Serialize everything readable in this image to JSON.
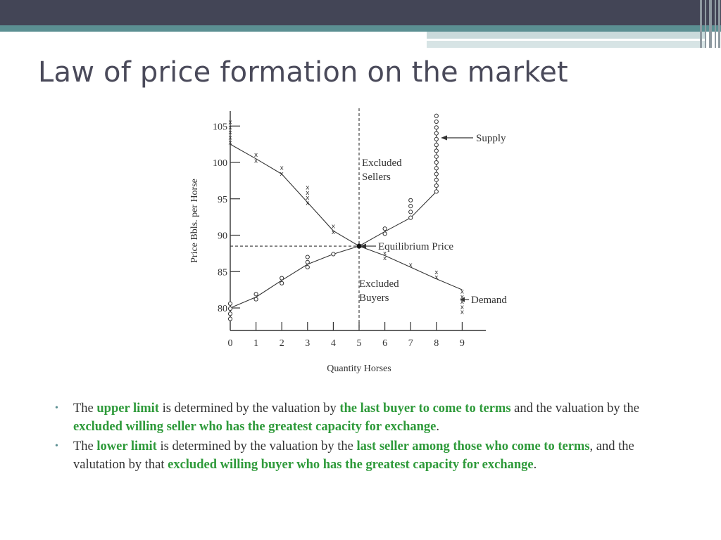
{
  "slide": {
    "title": "Law of price formation on the market"
  },
  "chart_data": {
    "type": "line",
    "xlabel": "Quantity Horses",
    "ylabel": "Price Bbls. per Horse",
    "xlim": [
      0,
      9
    ],
    "ylim": [
      79,
      106
    ],
    "x_ticks": [
      0,
      1,
      2,
      3,
      4,
      5,
      6,
      7,
      8,
      9
    ],
    "y_ticks": [
      80,
      85,
      90,
      95,
      100,
      105
    ],
    "series": [
      {
        "name": "Supply",
        "marker": "o",
        "points": [
          [
            0,
            80
          ],
          [
            1,
            81.5
          ],
          [
            2,
            83.8
          ],
          [
            3,
            86
          ],
          [
            4,
            87.4
          ],
          [
            5,
            88.5
          ],
          [
            6,
            90.5
          ],
          [
            7,
            92.4
          ],
          [
            8,
            96
          ],
          [
            8,
            105
          ]
        ],
        "marker_points": [
          [
            0,
            78.5
          ],
          [
            0,
            79.2
          ],
          [
            0,
            79.9
          ],
          [
            0,
            80.6
          ],
          [
            1,
            81.2
          ],
          [
            1,
            81.9
          ],
          [
            2,
            83.4
          ],
          [
            2,
            84.1
          ],
          [
            3,
            85.6
          ],
          [
            3,
            86.3
          ],
          [
            3,
            87
          ],
          [
            4,
            87.4
          ],
          [
            6,
            90.2
          ],
          [
            6,
            90.9
          ],
          [
            7,
            92.4
          ],
          [
            7,
            93.2
          ],
          [
            7,
            94
          ],
          [
            7,
            94.8
          ],
          [
            8,
            96
          ],
          [
            8,
            96.8
          ],
          [
            8,
            97.6
          ],
          [
            8,
            98.4
          ],
          [
            8,
            99.2
          ],
          [
            8,
            100
          ],
          [
            8,
            100.8
          ],
          [
            8,
            101.6
          ],
          [
            8,
            102.4
          ],
          [
            8,
            103.2
          ],
          [
            8,
            104
          ],
          [
            8,
            104.8
          ],
          [
            8,
            105.6
          ],
          [
            8,
            106.4
          ]
        ]
      },
      {
        "name": "Demand",
        "marker": "x",
        "points": [
          [
            0,
            102.5
          ],
          [
            1,
            100.5
          ],
          [
            2,
            98.4
          ],
          [
            3,
            94.5
          ],
          [
            4,
            90.6
          ],
          [
            5,
            88.5
          ],
          [
            6,
            87.2
          ],
          [
            7,
            85.6
          ],
          [
            8,
            84
          ],
          [
            9,
            82.5
          ]
        ],
        "marker_points": [
          [
            0,
            102.8
          ],
          [
            0,
            103.5
          ],
          [
            0,
            104.2
          ],
          [
            0,
            104.9
          ],
          [
            0,
            105.6
          ],
          [
            1,
            100.3
          ],
          [
            1,
            101.1
          ],
          [
            2,
            98.5
          ],
          [
            2,
            99.3
          ],
          [
            3,
            94.5
          ],
          [
            3,
            95.2
          ],
          [
            3,
            95.9
          ],
          [
            3,
            96.6
          ],
          [
            4,
            90.5
          ],
          [
            4,
            91.3
          ],
          [
            6,
            86.9
          ],
          [
            6,
            87.6
          ],
          [
            7,
            86
          ],
          [
            8,
            84.3
          ],
          [
            8,
            85
          ],
          [
            9,
            79.5
          ],
          [
            9,
            80.2
          ],
          [
            9,
            80.9
          ],
          [
            9,
            81.6
          ],
          [
            9,
            82.3
          ]
        ]
      }
    ],
    "equilibrium": {
      "x": 5,
      "y": 88.5
    },
    "annotations": [
      {
        "text": "Supply",
        "arrow": true
      },
      {
        "text": "Excluded Sellers",
        "lines": [
          "Excluded",
          "Sellers"
        ]
      },
      {
        "text": "Equilibrium Price",
        "arrow": true
      },
      {
        "text": "Excluded Buyers",
        "lines": [
          "Excluded",
          "Buyers"
        ]
      },
      {
        "text": "Demand",
        "arrow": true
      }
    ]
  },
  "bullets": [
    {
      "parts": [
        {
          "text": "The ",
          "bold": false
        },
        {
          "text": "upper limit",
          "bold": true
        },
        {
          "text": " is determined by the valuation by ",
          "bold": false
        },
        {
          "text": "the last buyer to come to terms",
          "bold": true
        },
        {
          "text": " and the valuation by the ",
          "bold": false
        },
        {
          "text": "excluded willing seller who has the greatest capacity for exchange",
          "bold": true
        },
        {
          "text": ".",
          "bold": false
        }
      ]
    },
    {
      "parts": [
        {
          "text": "The ",
          "bold": false
        },
        {
          "text": "lower limit",
          "bold": true
        },
        {
          "text": " is determined by the valuation by the ",
          "bold": false
        },
        {
          "text": "last seller among those who come to terms",
          "bold": true
        },
        {
          "text": ", and the valutation by that ",
          "bold": false
        },
        {
          "text": "excluded willing buyer who has the greatest capacity for exchange",
          "bold": true
        },
        {
          "text": ".",
          "bold": false
        }
      ]
    }
  ],
  "colors": {
    "topbar": "#434556",
    "accent_teal": "#5b8f92",
    "highlight_green": "#2e9a3a",
    "title_text": "#4a4a5a"
  }
}
